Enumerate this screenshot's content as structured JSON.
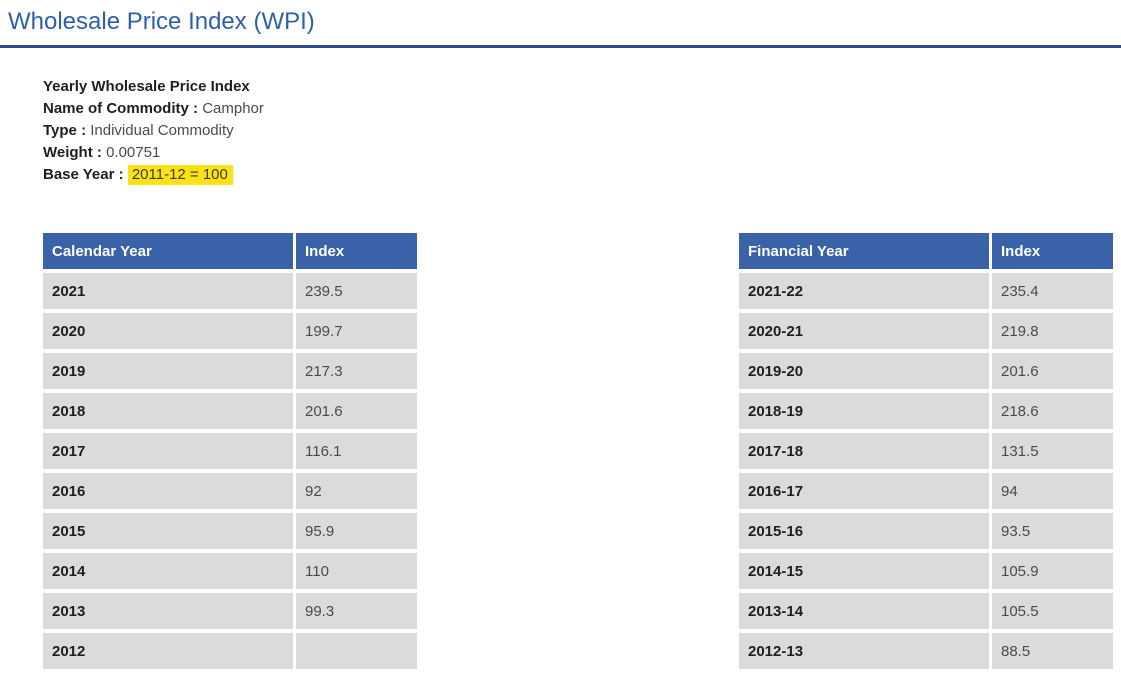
{
  "page": {
    "title": "Wholesale Price Index (WPI)"
  },
  "info": {
    "heading": "Yearly Wholesale Price Index",
    "separator": " : ",
    "fields": [
      {
        "label": "Name of Commodity",
        "value": "Camphor"
      },
      {
        "label": "Type",
        "value": "Individual Commodity"
      },
      {
        "label": "Weight",
        "value": "0.00751"
      },
      {
        "label": "Base Year",
        "value": "2011-12 = 100",
        "highlighted": true
      }
    ]
  },
  "tables": [
    {
      "id": "calendar-year-table",
      "columns": [
        "Calendar Year",
        "Index"
      ],
      "rows": [
        [
          "2021",
          "239.5"
        ],
        [
          "2020",
          "199.7"
        ],
        [
          "2019",
          "217.3"
        ],
        [
          "2018",
          "201.6"
        ],
        [
          "2017",
          "116.1"
        ],
        [
          "2016",
          "92"
        ],
        [
          "2015",
          "95.9"
        ],
        [
          "2014",
          "110"
        ],
        [
          "2013",
          "99.3"
        ],
        [
          "2012",
          ""
        ]
      ]
    },
    {
      "id": "financial-year-table",
      "columns": [
        "Financial Year",
        "Index"
      ],
      "rows": [
        [
          "2021-22",
          "235.4"
        ],
        [
          "2020-21",
          "219.8"
        ],
        [
          "2019-20",
          "201.6"
        ],
        [
          "2018-19",
          "218.6"
        ],
        [
          "2017-18",
          "131.5"
        ],
        [
          "2016-17",
          "94"
        ],
        [
          "2015-16",
          "93.5"
        ],
        [
          "2014-15",
          "105.9"
        ],
        [
          "2013-14",
          "105.5"
        ],
        [
          "2012-13",
          "88.5"
        ]
      ]
    }
  ],
  "colors": {
    "title_blue": "#2f5fac",
    "rule_blue": "#2e4d8f",
    "header_blue": "#3a62a8",
    "row_gray": "#dbdbdb",
    "text_dark": "#1f1f1f",
    "text_gray": "#4b4b49",
    "highlight_yellow": "#fbe216"
  }
}
